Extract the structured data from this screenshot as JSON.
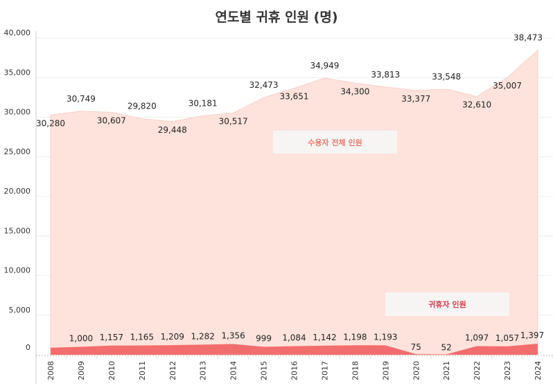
{
  "chart_data": {
    "type": "area",
    "title": "연도별 귀휴 인원 (명)",
    "xlabel": "",
    "ylabel": "",
    "ylim": [
      0,
      40000
    ],
    "yticks": [
      "0",
      "5,000",
      "10,000",
      "15,000",
      "20,000",
      "25,000",
      "30,000",
      "35,000",
      "40,000"
    ],
    "x": [
      "2008",
      "2009",
      "2010",
      "2011",
      "2012",
      "2013",
      "2014",
      "2015",
      "2016",
      "2017",
      "2018",
      "2019",
      "2020",
      "2021",
      "2022",
      "2023",
      "2024"
    ],
    "series": [
      {
        "name": "수용자 전체 인원",
        "color": "#fde3dc",
        "values": [
          30280,
          30749,
          30607,
          29820,
          29448,
          30181,
          30517,
          32473,
          33651,
          34949,
          34300,
          33813,
          33377,
          33548,
          32610,
          35007,
          38473
        ],
        "labels": [
          "30,280",
          "30,749",
          "30,607",
          "29,820",
          "29,448",
          "30,181",
          "30,517",
          "32,473",
          "33,651",
          "34,949",
          "34,300",
          "33,813",
          "33,377",
          "33,548",
          "32,610",
          "35,007",
          "38,473"
        ]
      },
      {
        "name": "귀휴자 인원",
        "color": "#f26d6d",
        "values": [
          880,
          1000,
          1157,
          1165,
          1209,
          1282,
          1356,
          999,
          1084,
          1142,
          1198,
          1193,
          75,
          52,
          1097,
          1057,
          1397
        ],
        "labels": [
          "",
          "1,000",
          "1,157",
          "1,165",
          "1,209",
          "1,282",
          "1,356",
          "999",
          "1,084",
          "1,142",
          "1,198",
          "1,193",
          "75",
          "52",
          "1,097",
          "1,057",
          "1,397"
        ]
      }
    ],
    "legend": {
      "total_label": "수용자 전체 인원",
      "total_color": "#ec7a70",
      "return_label": "귀휴자 인원",
      "return_color": "#d8394b"
    },
    "grid": true
  }
}
